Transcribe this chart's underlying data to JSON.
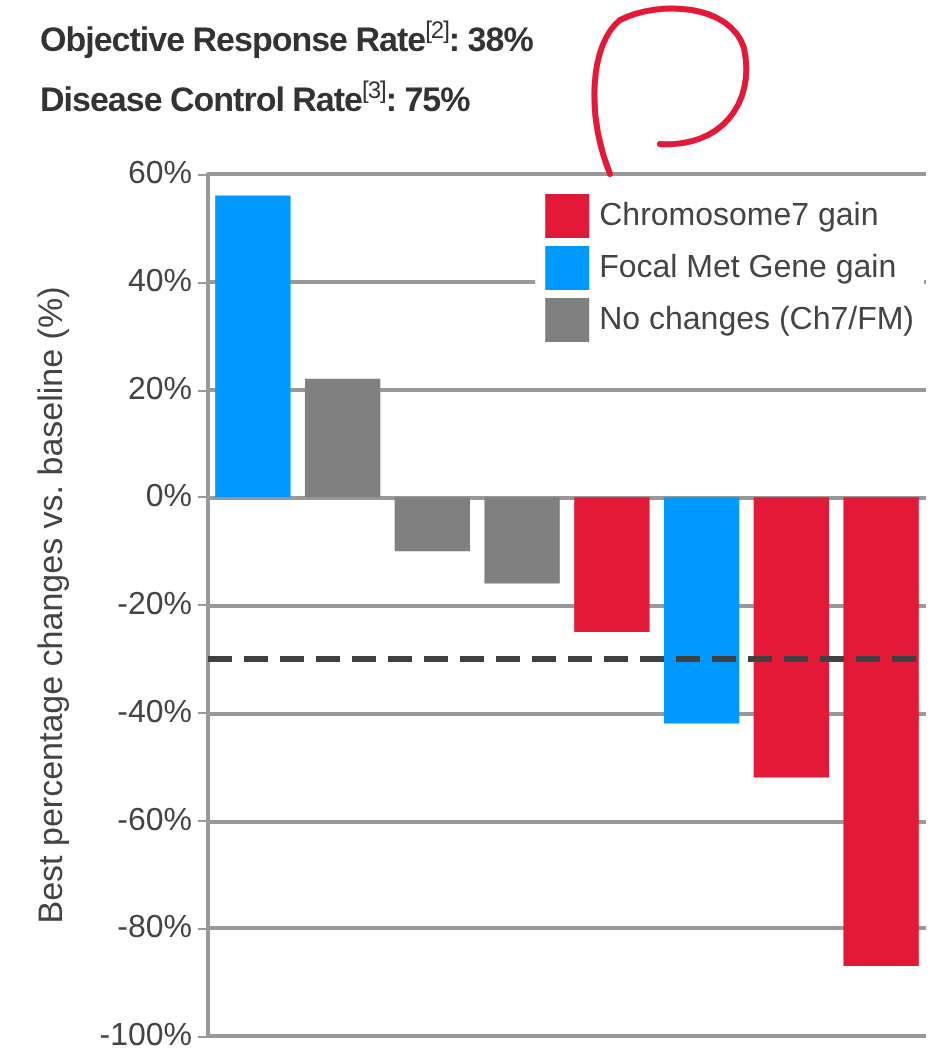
{
  "chart_data": {
    "type": "bar",
    "title": "Objective Response Rate$^{[2]}$: 38%",
    "subtitle": "Disease Control Rate$^{[3]}$: 75%",
    "ylabel": "Best percentage changes vs. baseline (%)",
    "categories": [
      null,
      null,
      null,
      null,
      null,
      null,
      null,
      null
    ],
    "series": [
      {
        "name": "Chromosome7 gain",
        "color": "#e31937",
        "values": [
          null,
          null,
          null,
          null,
          -25,
          null,
          -52,
          -87
        ]
      },
      {
        "name": "Focal Met Gene gain",
        "color": "#0099ff",
        "values": [
          56,
          null,
          null,
          null,
          null,
          -42,
          null,
          null
        ]
      },
      {
        "name": "No changes (Ch7/FM)",
        "color": "#808080",
        "values": [
          null,
          22,
          -10,
          -16,
          null,
          null,
          null,
          null
        ]
      }
    ],
    "ylim": [
      -100,
      60
    ],
    "yticks": [
      {
        "value": -100,
        "label": "-100%"
      },
      {
        "value": -80,
        "label": "-80%"
      },
      {
        "value": -60,
        "label": "-60%"
      },
      {
        "value": -40,
        "label": "-40%"
      },
      {
        "value": -20,
        "label": "-20%"
      },
      {
        "value": 0,
        "label": "0%"
      },
      {
        "value": 20,
        "label": "20%"
      },
      {
        "value": 40,
        "label": "40%"
      },
      {
        "value": 60,
        "label": "60%"
      }
    ],
    "ref_lines": [
      {
        "axis": "y",
        "value": -30,
        "label": null,
        "color": "#404040",
        "line_style": "dashed"
      }
    ],
    "grid": "y",
    "legend": "top right",
    "tick_labels": "y"
  }
}
